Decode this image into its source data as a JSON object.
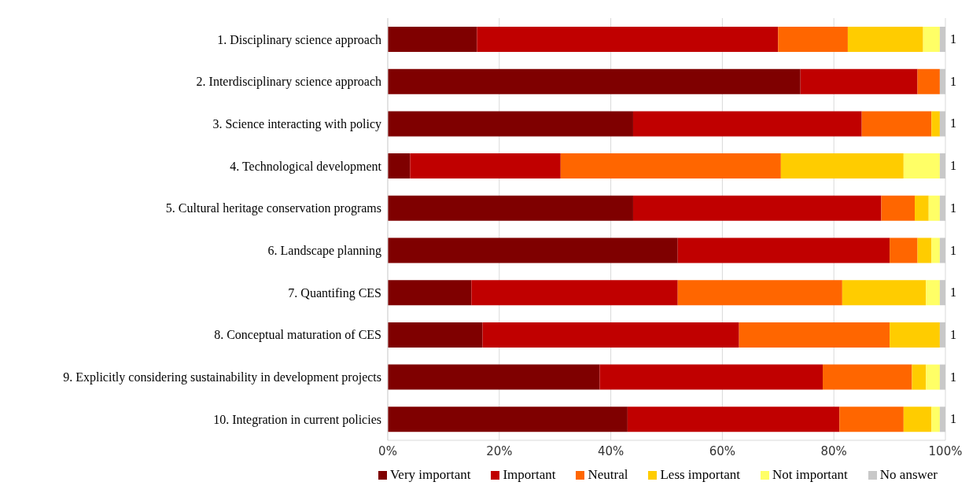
{
  "chart_data": {
    "type": "bar",
    "orientation": "horizontal",
    "stacked": true,
    "categories": [
      "1. Disciplinary science approach",
      "2. Interdisciplinary science approach",
      "3. Science interacting with policy",
      "4. Technological development",
      "5. Cultural heritage conservation programs",
      "6. Landscape planning",
      "7. Quantifing CES",
      "8. Conceptual maturation of CES",
      "9. Explicitly considering sustainability in development projects",
      "10. Integration in current policies"
    ],
    "series": [
      {
        "name": "Very important",
        "color": "#7f0000",
        "values": [
          16,
          74,
          44,
          4,
          44,
          52,
          15,
          17,
          38,
          43
        ]
      },
      {
        "name": "Important",
        "color": "#c00000",
        "values": [
          54,
          21,
          41,
          27,
          44.5,
          38,
          37,
          46,
          40,
          38
        ]
      },
      {
        "name": "Neutral",
        "color": "#ff6600",
        "values": [
          12.5,
          4,
          12.5,
          39.5,
          6,
          5,
          29.5,
          27,
          16,
          11.5
        ]
      },
      {
        "name": "Less important",
        "color": "#ffcc00",
        "values": [
          13.5,
          0,
          1.5,
          22,
          2.5,
          2.5,
          15,
          9,
          2.5,
          5
        ]
      },
      {
        "name": "Not important",
        "color": "#ffff66",
        "values": [
          3,
          0,
          0,
          6.5,
          2,
          1.5,
          2.5,
          0,
          2.5,
          1.5
        ]
      },
      {
        "name": "No answer",
        "color": "#c8c8c8",
        "values": [
          1,
          1,
          1,
          1,
          1,
          1,
          1,
          1,
          1,
          1
        ],
        "value_labels": [
          "1",
          "1",
          "1",
          "1",
          "1",
          "1",
          "1",
          "1",
          "1",
          "1"
        ]
      }
    ],
    "xlim": [
      0,
      100
    ],
    "xticks": [
      {
        "value": 0,
        "label": "0%"
      },
      {
        "value": 20,
        "label": "20%"
      },
      {
        "value": 40,
        "label": "40%"
      },
      {
        "value": 60,
        "label": "60%"
      },
      {
        "value": 80,
        "label": "80%"
      },
      {
        "value": 100,
        "label": "100%"
      }
    ],
    "grid": "x",
    "legend": "bottom"
  }
}
